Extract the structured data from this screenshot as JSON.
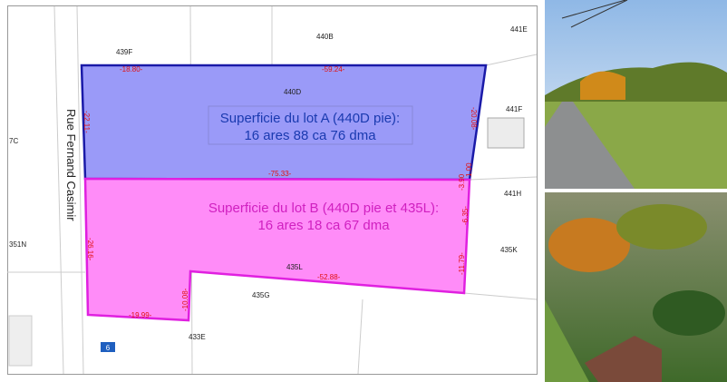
{
  "map": {
    "street": "Rue Fernand Casimir",
    "lot_a": {
      "title": "Superficie du lot A (440D pie):",
      "area": "16 ares 88 ca 76 dma"
    },
    "lot_b": {
      "title": "Superficie du lot B (440D pie et 435L):",
      "area": "16 ares 18 ca 67 dma"
    },
    "parcel_labels": [
      "440B",
      "441E",
      "439F",
      "440D",
      "441F",
      "7C",
      "441H",
      "351N",
      "435K",
      "435L",
      "435G",
      "433E"
    ],
    "dimensions": [
      "-18.80-",
      "-59.24-",
      "-22.11-",
      "-20.08-",
      "-75.33-",
      "-3.90",
      "1.00",
      "-6.35-",
      "-26.16-",
      "-11.79-",
      "-52.88-",
      "-10.08-",
      "-19.99-"
    ],
    "house_number": "6"
  }
}
